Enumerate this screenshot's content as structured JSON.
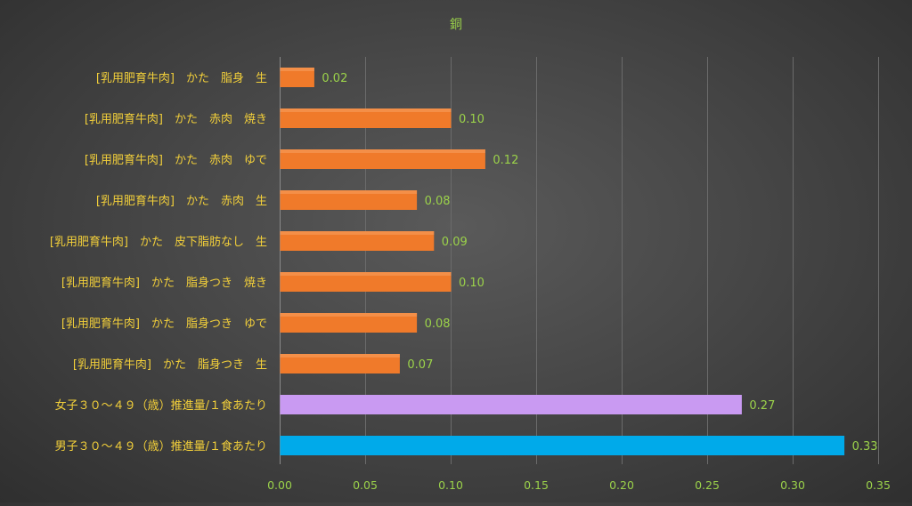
{
  "chart_data": {
    "type": "bar",
    "orientation": "horizontal",
    "title": "銅",
    "categories": [
      "[乳用肥育牛肉]　かた　脂身　生",
      "[乳用肥育牛肉]　かた　赤肉　焼き",
      "[乳用肥育牛肉]　かた　赤肉　ゆで",
      "[乳用肥育牛肉]　かた　赤肉　生",
      "[乳用肥育牛肉]　かた　皮下脂肪なし　生",
      "[乳用肥育牛肉]　かた　脂身つき　焼き",
      "[乳用肥育牛肉]　かた　脂身つき　ゆで",
      "[乳用肥育牛肉]　かた　脂身つき　生",
      "女子３０～４９（歳）推進量/１食あたり",
      "男子３０～４９（歳）推進量/１食あたり"
    ],
    "values": [
      0.02,
      0.1,
      0.12,
      0.08,
      0.09,
      0.1,
      0.08,
      0.07,
      0.27,
      0.33
    ],
    "value_labels": [
      "0.02",
      "0.10",
      "0.12",
      "0.08",
      "0.09",
      "0.10",
      "0.08",
      "0.07",
      "0.27",
      "0.33"
    ],
    "bar_colors": [
      "#f07a2a",
      "#f07a2a",
      "#f07a2a",
      "#f07a2a",
      "#f07a2a",
      "#f07a2a",
      "#f07a2a",
      "#f07a2a",
      "#c99af2",
      "#00aaea"
    ],
    "xlim": [
      0,
      0.35
    ],
    "xticks": [
      0,
      0.05,
      0.1,
      0.15,
      0.2,
      0.25,
      0.3,
      0.35
    ],
    "xtick_labels": [
      "0.00",
      "0.05",
      "0.10",
      "0.15",
      "0.20",
      "0.25",
      "0.30",
      "0.35"
    ],
    "xlabel": "",
    "ylabel": "",
    "grid": true,
    "legend": "none"
  }
}
